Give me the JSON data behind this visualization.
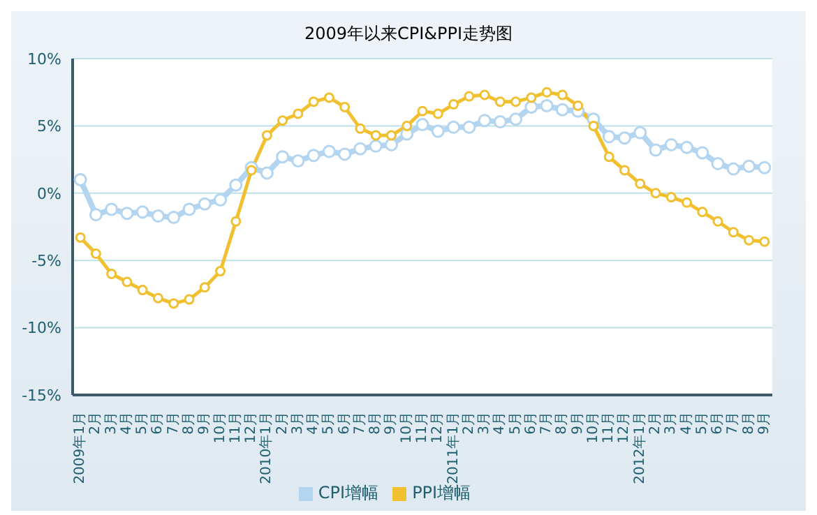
{
  "chart_data": {
    "type": "line",
    "title": "2009年以来CPI&PPI走势图",
    "categories": [
      "2009年1月",
      "2月",
      "3月",
      "4月",
      "5月",
      "6月",
      "7月",
      "8月",
      "9月",
      "10月",
      "11月",
      "12月",
      "2010年1月",
      "2月",
      "3月",
      "4月",
      "5月",
      "6月",
      "7月",
      "8月",
      "9月",
      "10月",
      "11月",
      "12月",
      "2011年1月",
      "2月",
      "3月",
      "4月",
      "5月",
      "6月",
      "7月",
      "8月",
      "9月",
      "10月",
      "11月",
      "12月",
      "2012年1月",
      "2月",
      "3月",
      "4月",
      "5月",
      "6月",
      "7月",
      "8月",
      "9月"
    ],
    "series": [
      {
        "name": "CPI增幅",
        "color": "#b3d5f0",
        "values": [
          1.0,
          -1.6,
          -1.2,
          -1.5,
          -1.4,
          -1.7,
          -1.8,
          -1.2,
          -0.8,
          -0.5,
          0.6,
          1.9,
          1.5,
          2.7,
          2.4,
          2.8,
          3.1,
          2.9,
          3.3,
          3.5,
          3.6,
          4.4,
          5.1,
          4.6,
          4.9,
          4.9,
          5.4,
          5.3,
          5.5,
          6.4,
          6.5,
          6.2,
          6.1,
          5.5,
          4.2,
          4.1,
          4.5,
          3.2,
          3.6,
          3.4,
          3.0,
          2.2,
          1.8,
          2.0,
          1.9
        ]
      },
      {
        "name": "PPI增幅",
        "color": "#f0c030",
        "values": [
          -3.3,
          -4.5,
          -6.0,
          -6.6,
          -7.2,
          -7.8,
          -8.2,
          -7.9,
          -7.0,
          -5.8,
          -2.1,
          1.7,
          4.3,
          5.4,
          5.9,
          6.8,
          7.1,
          6.4,
          4.8,
          4.3,
          4.3,
          5.0,
          6.1,
          5.9,
          6.6,
          7.2,
          7.3,
          6.8,
          6.8,
          7.1,
          7.5,
          7.3,
          6.5,
          5.0,
          2.7,
          1.7,
          0.7,
          0.0,
          -0.3,
          -0.7,
          -1.4,
          -2.1,
          -2.9,
          -3.5,
          -3.6
        ]
      }
    ],
    "ylim": [
      -15,
      10
    ],
    "yticks": [
      {
        "value": -15,
        "label": "-15%"
      },
      {
        "value": -10,
        "label": "-10%"
      },
      {
        "value": -5,
        "label": "-5%"
      },
      {
        "value": 0,
        "label": "0%"
      },
      {
        "value": 5,
        "label": "5%"
      },
      {
        "value": 10,
        "label": "10%"
      }
    ],
    "grid": "y",
    "legend": "bottom",
    "marker": "circle",
    "line_style": "solid"
  }
}
